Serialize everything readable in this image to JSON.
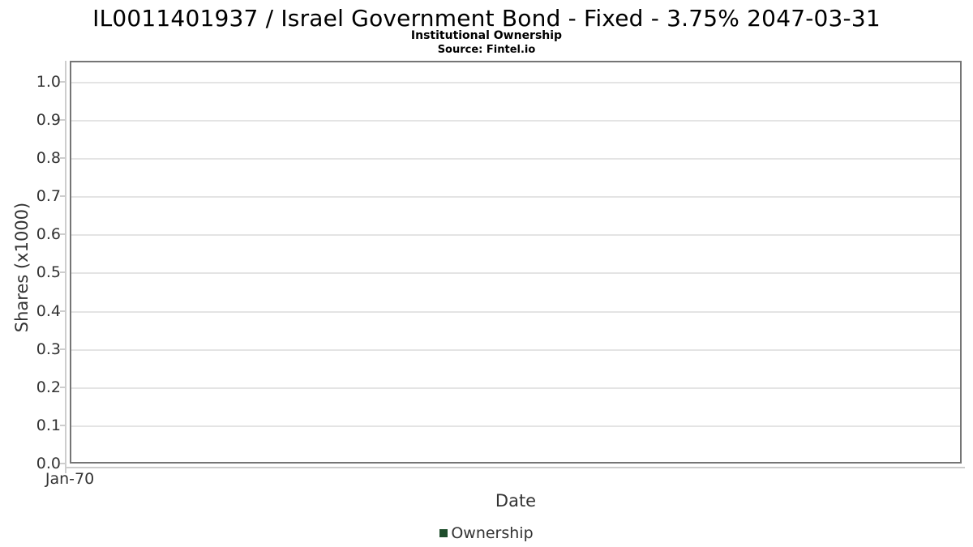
{
  "chart_data": {
    "type": "line",
    "title": "IL0011401937 / Israel Government Bond - Fixed - 3.75% 2047-03-31",
    "subtitle": "Institutional Ownership",
    "source_note": "Source: Fintel.io",
    "xlabel": "Date",
    "ylabel": "Shares (x1000)",
    "x_tick_labels": [
      "Jan-70"
    ],
    "x_tick_fractions": [
      0
    ],
    "y_tick_values": [
      0.0,
      0.1,
      0.2,
      0.3,
      0.4,
      0.5,
      0.6,
      0.7,
      0.8,
      0.9,
      1.0
    ],
    "ylim": [
      0,
      1.055
    ],
    "grid": true,
    "legend_position": "bottom",
    "legend": [
      {
        "label": "Ownership",
        "color": "#1e4d2b"
      }
    ],
    "series": [
      {
        "name": "Ownership",
        "x": [],
        "values": []
      }
    ]
  },
  "colors": {
    "plot_border": "#757575",
    "gridline": "#e4e4e4",
    "axis_line": "#cdcdcd",
    "axis_text": "#333333",
    "title_text": "#000000"
  }
}
